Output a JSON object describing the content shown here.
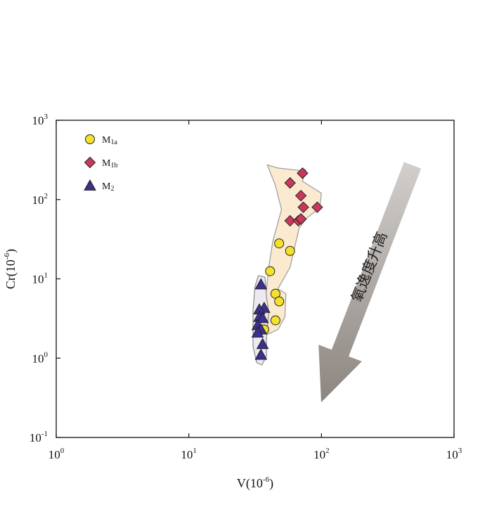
{
  "chart_data": {
    "type": "scatter",
    "title": "",
    "xlabel": {
      "base": "V(10",
      "sup": "-6",
      "end": ")"
    },
    "ylabel": {
      "base": "Cr(10",
      "sup": "-6",
      "end": ")"
    },
    "xscale": "log",
    "yscale": "log",
    "xlim": [
      1,
      1000
    ],
    "ylim": [
      0.1,
      1000
    ],
    "x_ticks": [
      {
        "base": "10",
        "exp": "0"
      },
      {
        "base": "10",
        "exp": "1"
      },
      {
        "base": "10",
        "exp": "2"
      },
      {
        "base": "10",
        "exp": "3"
      }
    ],
    "y_ticks": [
      {
        "base": "10",
        "exp": "-1"
      },
      {
        "base": "10",
        "exp": "0"
      },
      {
        "base": "10",
        "exp": "1"
      },
      {
        "base": "10",
        "exp": "2"
      },
      {
        "base": "10",
        "exp": "3"
      }
    ],
    "grid": false,
    "legend_position": "top-left",
    "series": [
      {
        "name": "M1a",
        "label_main": "M",
        "label_sub": "1a",
        "marker": "circle",
        "color": "#f5e12c",
        "x": [
          48,
          58,
          41,
          45,
          48,
          45,
          37
        ],
        "y": [
          28,
          22.5,
          12.5,
          6.5,
          5.2,
          3.0,
          2.3
        ]
      },
      {
        "name": "M1b",
        "label_main": "M",
        "label_sub": "1b",
        "marker": "diamond",
        "color": "#c9385a",
        "x": [
          72,
          58,
          70,
          73,
          93,
          58,
          67,
          70
        ],
        "y": [
          215,
          162,
          112,
          80,
          80,
          54,
          54,
          57
        ]
      },
      {
        "name": "M2",
        "label_main": "M",
        "label_sub": "2",
        "marker": "triangle",
        "color": "#3c2f8e",
        "x": [
          35,
          37,
          34,
          34,
          36,
          33,
          35,
          33,
          36,
          35
        ],
        "y": [
          8.5,
          4.3,
          4.1,
          3.3,
          3.2,
          2.6,
          2.3,
          2.1,
          1.5,
          1.1
        ]
      }
    ],
    "fields": [
      {
        "series": "M1a",
        "fill": "#fbead0",
        "stroke": "#9a9a9a"
      },
      {
        "series": "M2",
        "fill": "#eceaf0",
        "stroke": "#8a8a8a"
      }
    ],
    "annotation": {
      "text": "氧逸度升高",
      "arrow_direction": "down-left"
    },
    "colors": {
      "arrow_light": "#d2cfcc",
      "arrow_dark": "#8c8580"
    }
  }
}
